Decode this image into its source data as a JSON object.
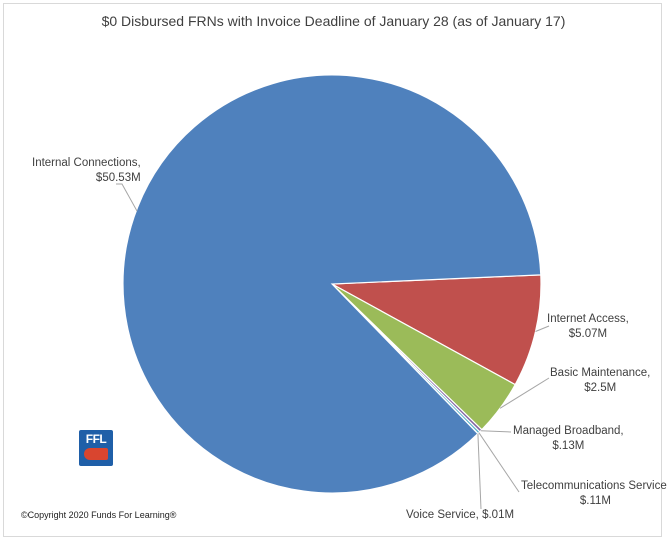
{
  "chart_data": {
    "type": "pie",
    "title": "$0 Disbursed FRNs with Invoice Deadline of January 28 (as of January 17)",
    "slices": [
      {
        "label": "Internal Connections,",
        "value_label": "$50.53M",
        "value": 50.53,
        "color": "#4f81bd"
      },
      {
        "label": "Internet Access,",
        "value_label": "$5.07M",
        "value": 5.07,
        "color": "#c0504d"
      },
      {
        "label": "Basic Maintenance,",
        "value_label": "$2.5M",
        "value": 2.5,
        "color": "#9bbb59"
      },
      {
        "label": "Managed Broadband,",
        "value_label": "$.13M",
        "value": 0.13,
        "color": "#8064a2"
      },
      {
        "label": "Telecommunications Service,",
        "value_label": "$.11M",
        "value": 0.11,
        "color": "#4bacc6"
      },
      {
        "label": "Voice Service,",
        "value_label": "$.01M",
        "value": 0.01,
        "color": "#f79646"
      }
    ],
    "legend": "none"
  },
  "logo": {
    "text": "FFL"
  },
  "footer": {
    "copyright": "©Copyright 2020 Funds For Learning®"
  }
}
